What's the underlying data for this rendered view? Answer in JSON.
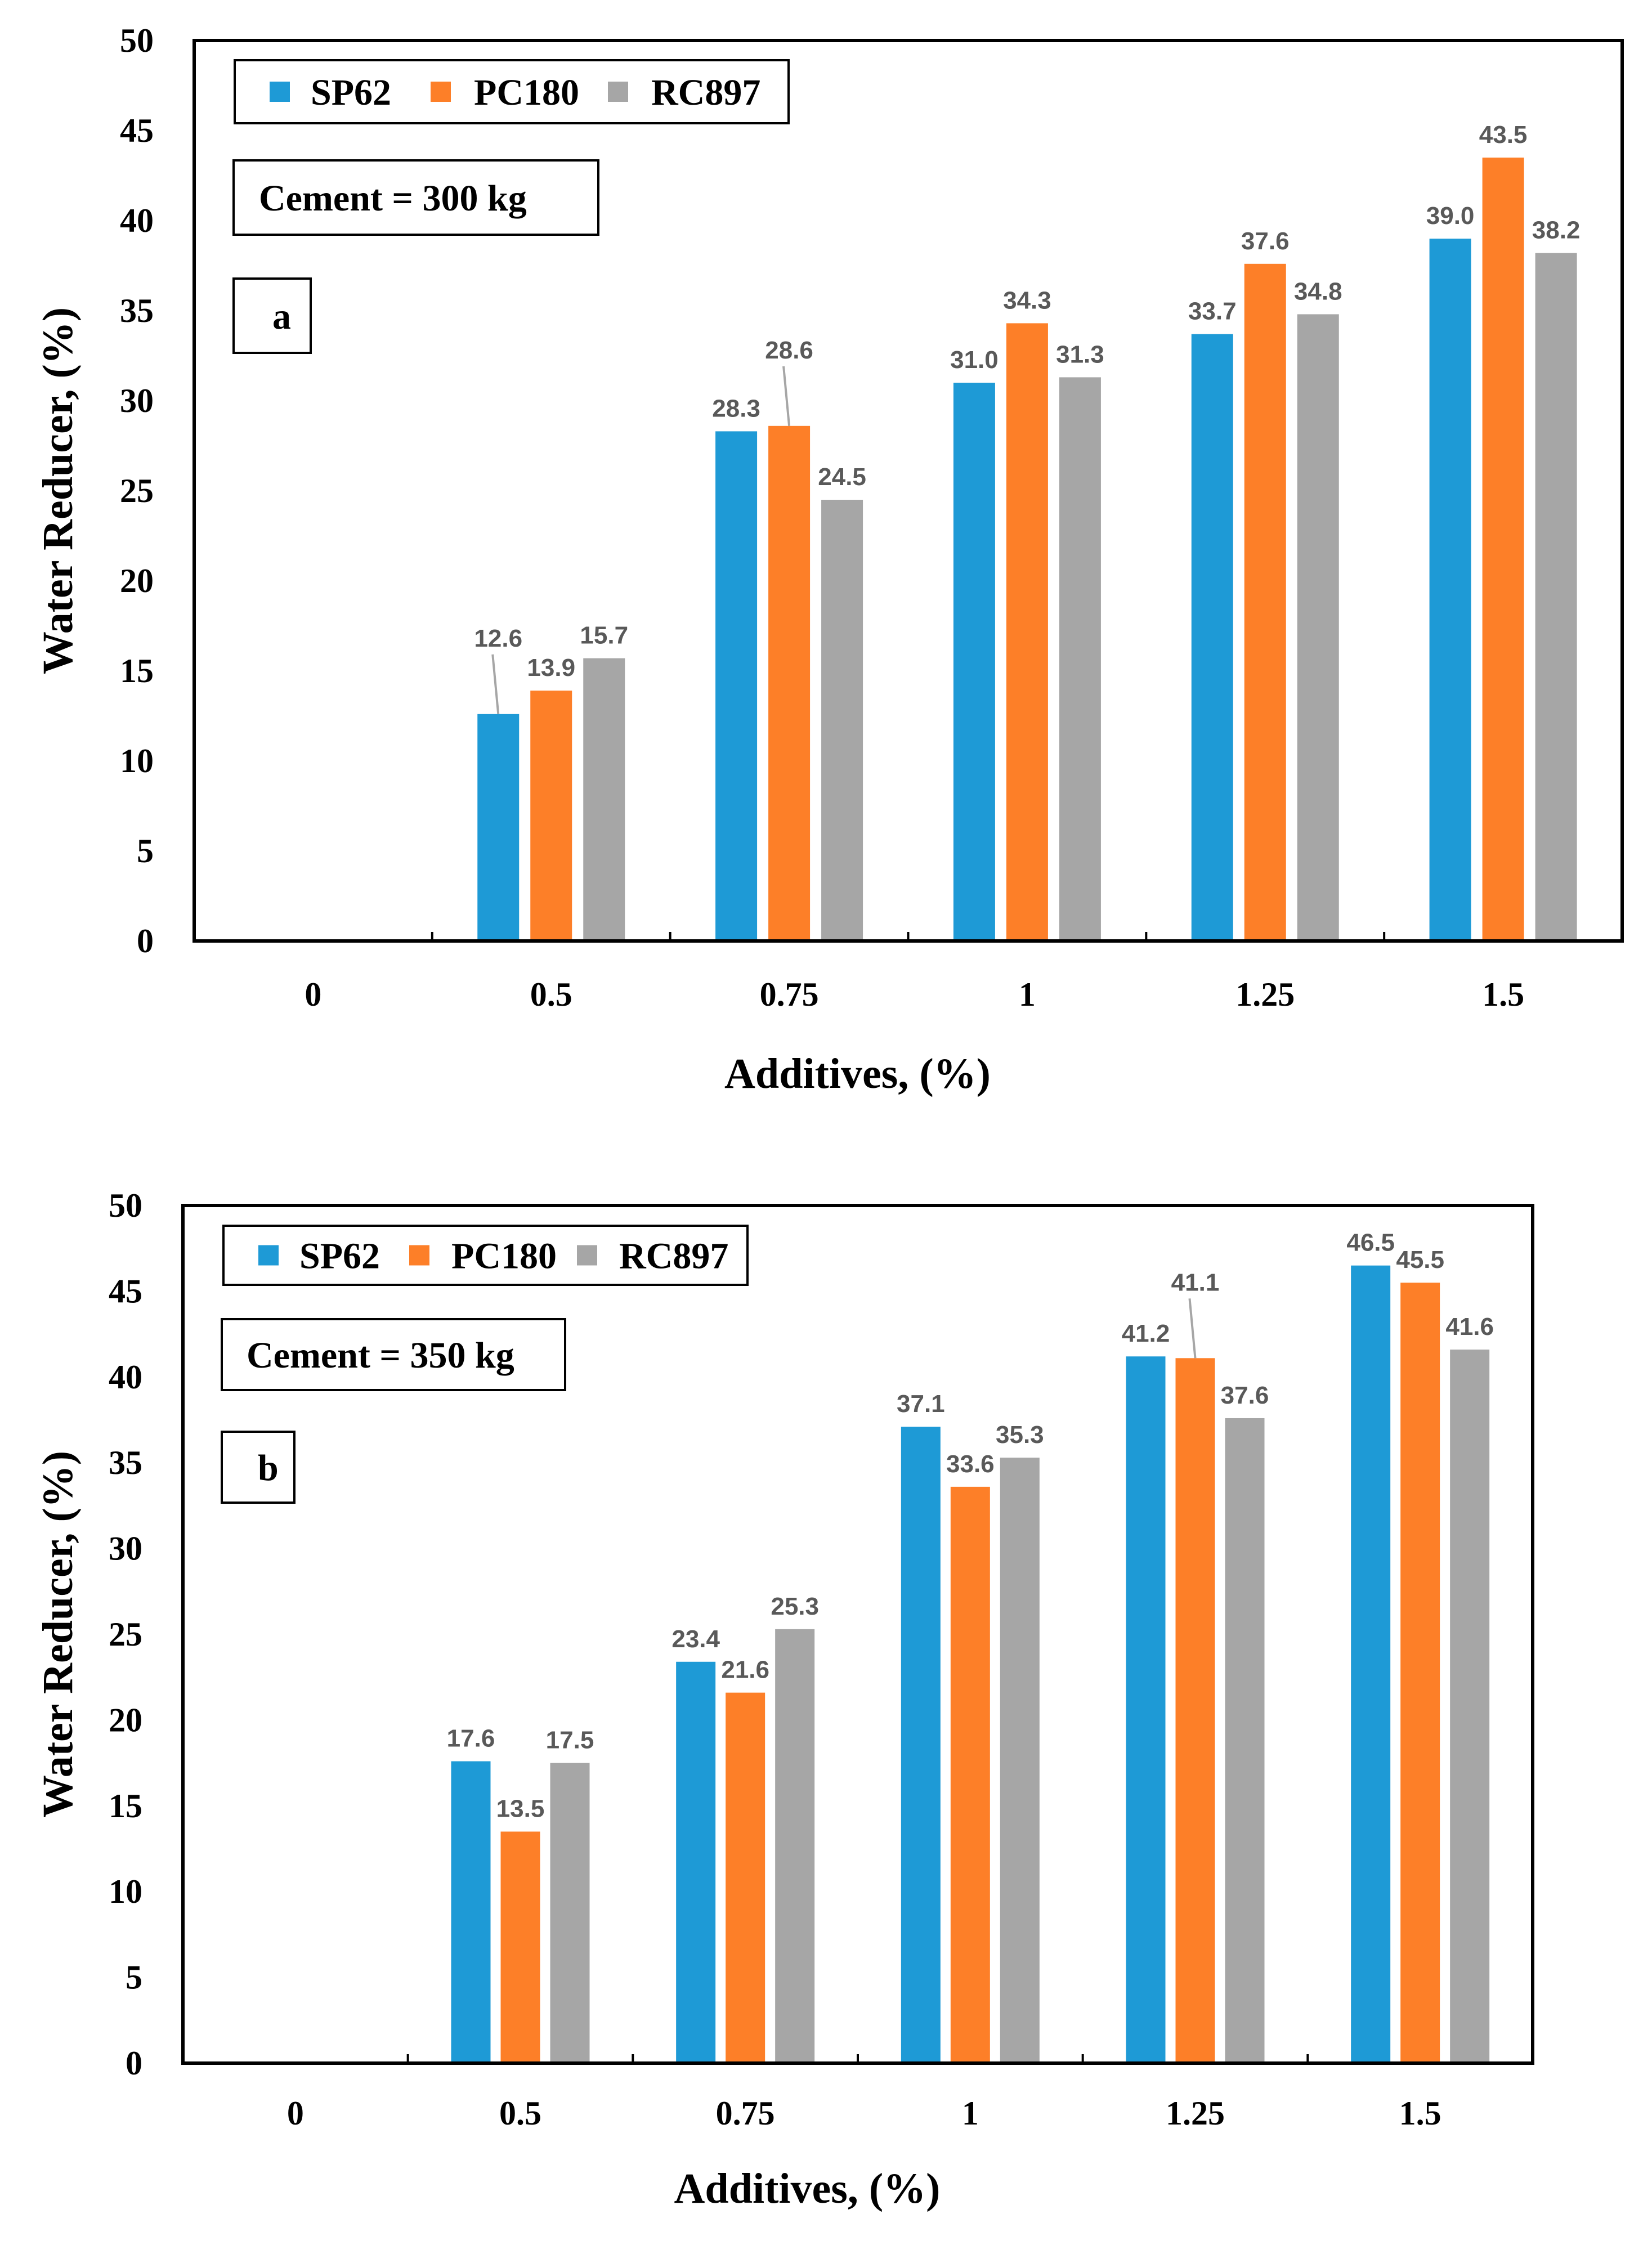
{
  "colors": {
    "SP62": "#1e9ad6",
    "PC180": "#fd7f28",
    "RC897": "#a6a6a6",
    "axis": "#000000",
    "label": "#595959"
  },
  "chart_data": [
    {
      "type": "bar",
      "panel": "a",
      "box_label": "Cement = 300 kg",
      "xlabel": "Additives, (%)",
      "ylabel": "Water Reducer, (%)",
      "ylim": [
        0,
        50
      ],
      "yticks": [
        "0",
        "5",
        "10",
        "15",
        "20",
        "25",
        "30",
        "35",
        "40",
        "45",
        "50"
      ],
      "categories": [
        "0",
        "0.5",
        "0.75",
        "1",
        "1.25",
        "1.5"
      ],
      "legend_position": "top-left",
      "series": [
        {
          "name": "SP62",
          "values": [
            0,
            12.6,
            28.3,
            31.0,
            33.7,
            39.0
          ],
          "labels": [
            "",
            "12.6",
            "28.3",
            "31.0",
            "33.7",
            "39.0"
          ]
        },
        {
          "name": "PC180",
          "values": [
            0,
            13.9,
            28.6,
            34.3,
            37.6,
            43.5
          ],
          "labels": [
            "",
            "13.9",
            "28.6",
            "34.3",
            "37.6",
            "43.5"
          ]
        },
        {
          "name": "RC897",
          "values": [
            0,
            15.7,
            24.5,
            31.3,
            34.8,
            38.2
          ],
          "labels": [
            "",
            "15.7",
            "24.5",
            "31.3",
            "34.8",
            "38.2"
          ]
        }
      ]
    },
    {
      "type": "bar",
      "panel": "b",
      "box_label": "Cement = 350 kg",
      "xlabel": "Additives, (%)",
      "ylabel": "Water Reducer, (%)",
      "ylim": [
        0,
        50
      ],
      "yticks": [
        "0",
        "5",
        "10",
        "15",
        "20",
        "25",
        "30",
        "35",
        "40",
        "45",
        "50"
      ],
      "categories": [
        "0",
        "0.5",
        "0.75",
        "1",
        "1.25",
        "1.5"
      ],
      "legend_position": "top-left",
      "series": [
        {
          "name": "SP62",
          "values": [
            0,
            17.6,
            23.4,
            37.1,
            41.2,
            46.5
          ],
          "labels": [
            "",
            "17.6",
            "23.4",
            "37.1",
            "41.2",
            "46.5"
          ]
        },
        {
          "name": "PC180",
          "values": [
            0,
            13.5,
            21.6,
            33.6,
            41.1,
            45.5
          ],
          "labels": [
            "",
            "13.5",
            "21.6",
            "33.6",
            "41.1",
            "45.5"
          ]
        },
        {
          "name": "RC897",
          "values": [
            0,
            17.5,
            25.3,
            35.3,
            37.6,
            41.6
          ],
          "labels": [
            "",
            "17.5",
            "25.3",
            "35.3",
            "37.6",
            "41.6"
          ]
        }
      ]
    }
  ]
}
